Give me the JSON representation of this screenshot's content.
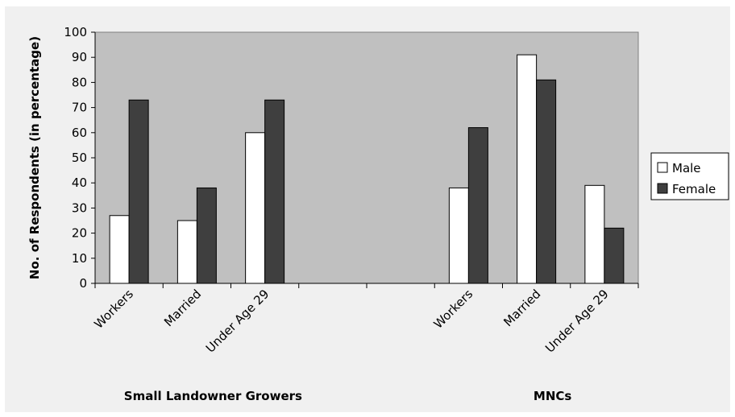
{
  "chart_data": {
    "type": "bar",
    "ylabel": "No. of Respondents (in percentage)",
    "xlabel": "",
    "ylim": [
      0,
      100
    ],
    "yticks": [
      0,
      10,
      20,
      30,
      40,
      50,
      60,
      70,
      80,
      90,
      100
    ],
    "grid": false,
    "legend_position": "right",
    "categories": [
      "Workers",
      "Married",
      "Under Age 29",
      "",
      "",
      "Workers",
      "Married",
      "Under Age 29"
    ],
    "groups": [
      {
        "label": "Small Landowner Growers",
        "category_indices": [
          0,
          1,
          2
        ]
      },
      {
        "label": "MNCs",
        "category_indices": [
          5,
          6,
          7
        ]
      }
    ],
    "series": [
      {
        "name": "Male",
        "color": "#ffffff",
        "values": [
          27,
          25,
          60,
          null,
          null,
          38,
          91,
          39
        ]
      },
      {
        "name": "Female",
        "color": "#3f3f3f",
        "values": [
          73,
          38,
          73,
          null,
          null,
          62,
          81,
          22
        ]
      }
    ],
    "colors": {
      "plot_bg": "#c0c0c0",
      "bar_stroke": "#000000"
    }
  }
}
